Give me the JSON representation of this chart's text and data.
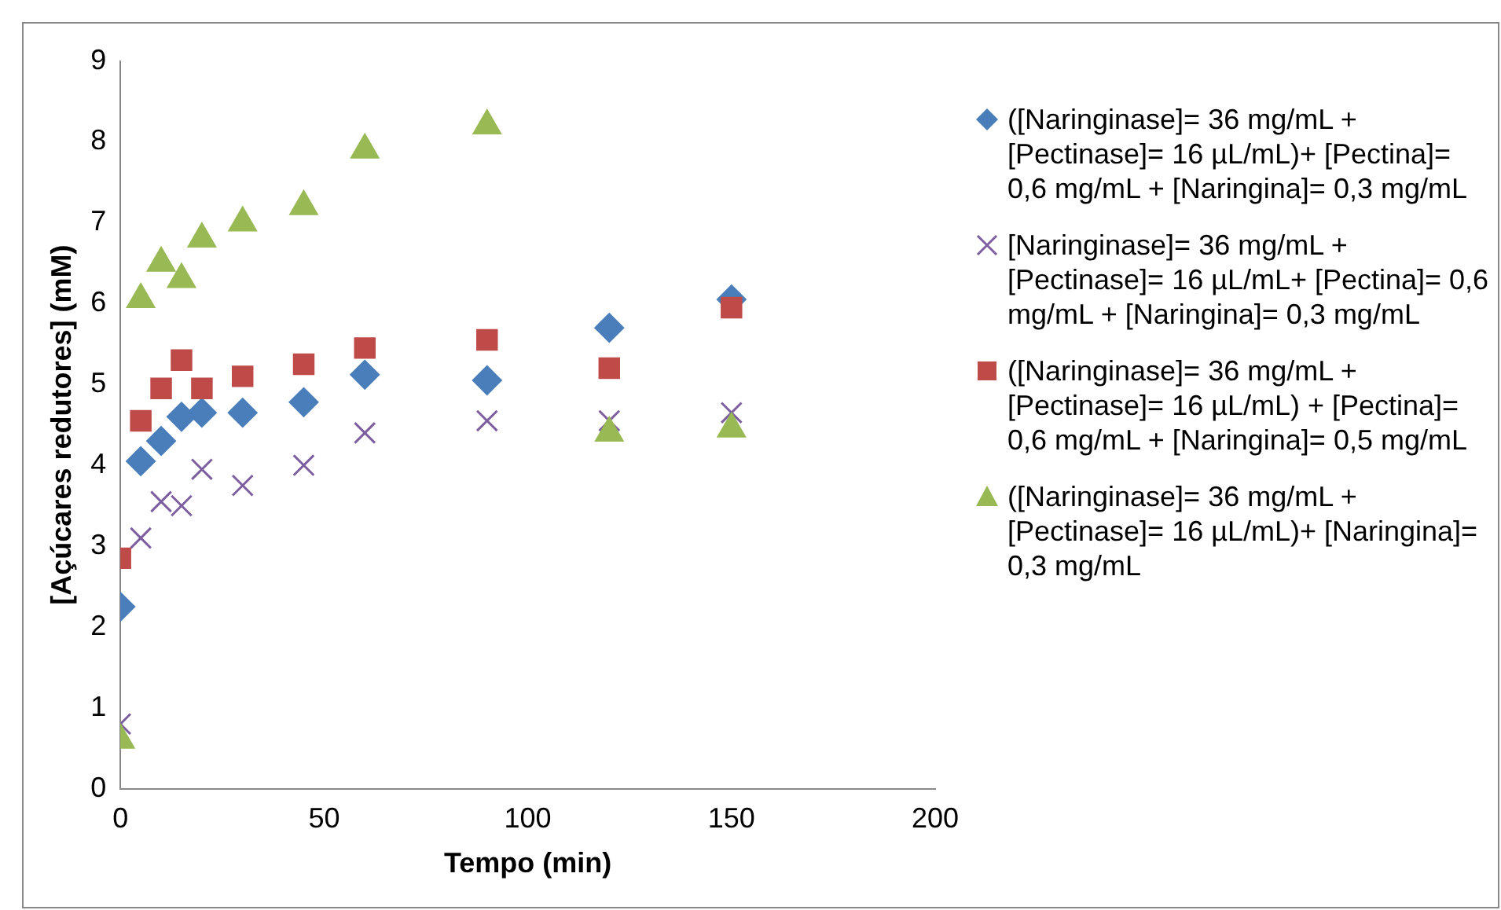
{
  "chart_data": {
    "type": "scatter",
    "xlabel": "Tempo (min)",
    "ylabel": "[Açúcares redutores] (mM)",
    "xlim": [
      0,
      200
    ],
    "xticks": [
      0,
      50,
      100,
      150,
      200
    ],
    "ylim": [
      0,
      9
    ],
    "yticks": [
      0,
      1,
      2,
      3,
      4,
      5,
      6,
      7,
      8,
      9
    ],
    "grid": false,
    "legend": "right",
    "x": [
      0,
      5,
      10,
      15,
      20,
      30,
      45,
      60,
      90,
      120,
      150
    ],
    "series": [
      {
        "name": "([Naringinase]= 36 mg/mL + [Pectinase]= 16 µL/mL)+ [Pectina]= 0,6 mg/mL + [Naringina]= 0,3 mg/mL",
        "color": "#4a7ebb",
        "marker": "diamond",
        "values": [
          2.25,
          4.05,
          4.3,
          4.6,
          4.65,
          4.65,
          4.78,
          5.12,
          5.05,
          5.7,
          6.05
        ]
      },
      {
        "name": "[Naringinase]= 36 mg/mL + [Pectinase]= 16 µL/mL+ [Pectina]= 0,6 mg/mL + [Naringina]= 0,3 mg/mL",
        "color": "#7d5fa0",
        "marker": "cross",
        "values": [
          0.8,
          3.1,
          3.55,
          3.5,
          3.95,
          3.75,
          4.0,
          4.4,
          4.55,
          4.55,
          4.65
        ]
      },
      {
        "name": "([Naringinase]= 36 mg/mL + [Pectinase]= 16 µL/mL) + [Pectina]= 0,6 mg/mL + [Naringina]= 0,5 mg/mL",
        "color": "#be4b48",
        "marker": "square",
        "values": [
          2.85,
          4.55,
          4.95,
          5.3,
          4.95,
          5.1,
          5.25,
          5.45,
          5.55,
          5.2,
          5.95
        ]
      },
      {
        "name": "([Naringinase]= 36 mg/mL + [Pectinase]= 16 µL/mL)+ [Naringina]= 0,3 mg/mL",
        "color": "#98b954",
        "marker": "triangle",
        "values": [
          0.6,
          6.05,
          6.5,
          6.3,
          6.8,
          7.0,
          7.2,
          7.9,
          8.2,
          4.4,
          4.45
        ]
      }
    ]
  }
}
